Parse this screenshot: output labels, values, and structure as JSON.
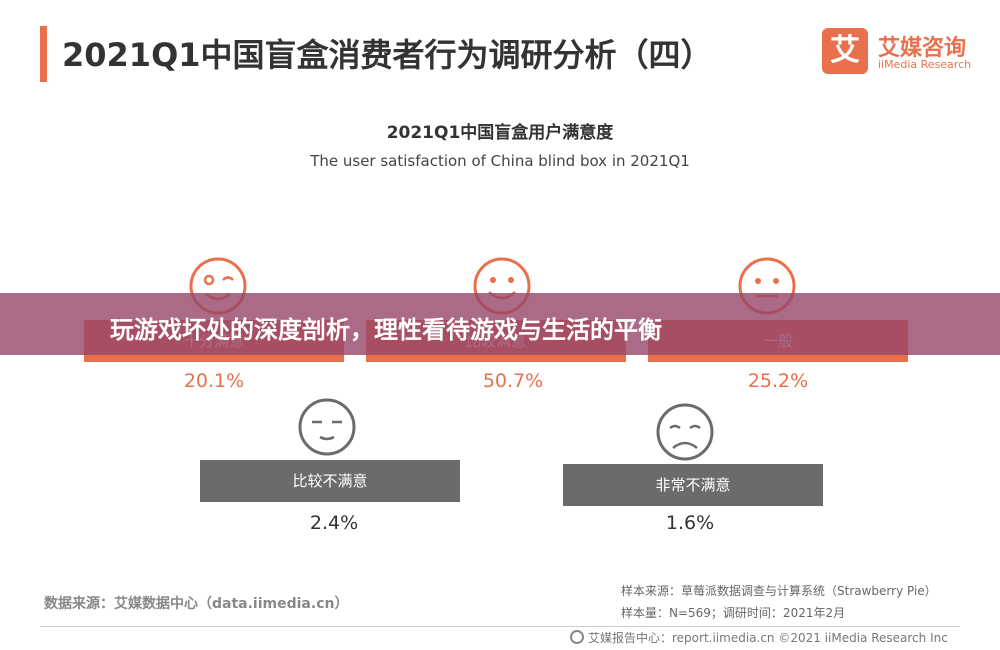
{
  "header": {
    "title": "2021Q1中国盲盒消费者行为调研分析（四）",
    "logo": {
      "mark": "艾",
      "cn": "艾媒咨询",
      "en": "iiMedia Research"
    }
  },
  "chart_data": {
    "type": "table",
    "title": "2021Q1中国盲盒用户满意度",
    "subtitle": "The user satisfaction of China blind box in 2021Q1",
    "unit": "%",
    "categories": [
      "十分满意",
      "比较满意",
      "一般",
      "比较不满意",
      "非常不满意"
    ],
    "values": [
      20.1,
      50.7,
      25.2,
      2.4,
      1.6
    ],
    "value_labels": [
      "20.1%",
      "50.7%",
      "25.2%",
      "2.4%",
      "1.6%"
    ],
    "icons": [
      "wink-face-icon",
      "smile-face-icon",
      "neutral-face-icon",
      "sleepy-face-icon",
      "sad-face-icon"
    ],
    "colors": {
      "positive": "#e8704d",
      "negative": "#6b6b6b"
    }
  },
  "overlay": {
    "banner_text": "玩游戏坏处的深度剖析，理性看待游戏与生活的平衡"
  },
  "source": {
    "left": "数据来源：艾媒数据中心（data.iimedia.cn）",
    "sample_source": "样本来源：草莓派数据调查与计算系统（Strawberry Pie）",
    "sample_size": "样本量：N=569；调研时间：2021年2月"
  },
  "footer": {
    "text": "艾媒报告中心：report.iimedia.cn  ©2021  iiMedia Research  Inc"
  }
}
